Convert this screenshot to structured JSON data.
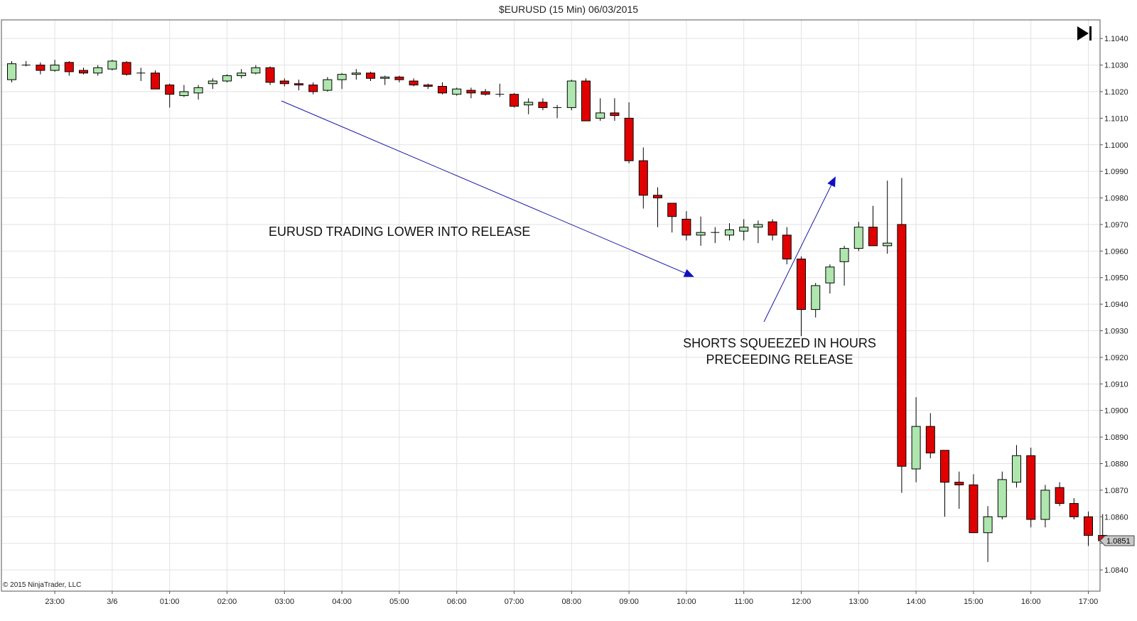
{
  "chart_data": {
    "type": "candlestick",
    "title": "$EURUSD (15 Min)  06/03/2015",
    "copyright": "© 2015 NinjaTrader, LLC",
    "ylim": [
      1.0832,
      1.1047
    ],
    "yticks": [
      "1.1040",
      "1.1030",
      "1.1020",
      "1.1010",
      "1.1000",
      "1.0990",
      "1.0980",
      "1.0970",
      "1.0960",
      "1.0950",
      "1.0940",
      "1.0930",
      "1.0920",
      "1.0910",
      "1.0900",
      "1.0890",
      "1.0880",
      "1.0870",
      "1.0860",
      "1.0850",
      "1.0840"
    ],
    "xticks": [
      {
        "label": "23:00",
        "idx": 3
      },
      {
        "label": "3/6",
        "idx": 7
      },
      {
        "label": "01:00",
        "idx": 11
      },
      {
        "label": "02:00",
        "idx": 15
      },
      {
        "label": "03:00",
        "idx": 19
      },
      {
        "label": "04:00",
        "idx": 23
      },
      {
        "label": "05:00",
        "idx": 27
      },
      {
        "label": "06:00",
        "idx": 31
      },
      {
        "label": "07:00",
        "idx": 35
      },
      {
        "label": "08:00",
        "idx": 39
      },
      {
        "label": "09:00",
        "idx": 43
      },
      {
        "label": "10:00",
        "idx": 47
      },
      {
        "label": "11:00",
        "idx": 51
      },
      {
        "label": "12:00",
        "idx": 55
      },
      {
        "label": "13:00",
        "idx": 59
      },
      {
        "label": "14:00",
        "idx": 63
      },
      {
        "label": "15:00",
        "idx": 67
      },
      {
        "label": "16:00",
        "idx": 71
      },
      {
        "label": "17:00",
        "idx": 75
      }
    ],
    "candles": [
      {
        "o": 1.10245,
        "h": 1.10315,
        "l": 1.10235,
        "c": 1.10305
      },
      {
        "o": 1.103,
        "h": 1.10315,
        "l": 1.10295,
        "c": 1.103
      },
      {
        "o": 1.103,
        "h": 1.1031,
        "l": 1.10265,
        "c": 1.1028
      },
      {
        "o": 1.1028,
        "h": 1.1032,
        "l": 1.10275,
        "c": 1.103
      },
      {
        "o": 1.1031,
        "h": 1.10315,
        "l": 1.1026,
        "c": 1.10275
      },
      {
        "o": 1.1028,
        "h": 1.1029,
        "l": 1.10265,
        "c": 1.1027
      },
      {
        "o": 1.1027,
        "h": 1.103,
        "l": 1.1026,
        "c": 1.1029
      },
      {
        "o": 1.10285,
        "h": 1.1032,
        "l": 1.1028,
        "c": 1.10315
      },
      {
        "o": 1.1031,
        "h": 1.10315,
        "l": 1.1026,
        "c": 1.10265
      },
      {
        "o": 1.1027,
        "h": 1.1029,
        "l": 1.1024,
        "c": 1.1027
      },
      {
        "o": 1.1027,
        "h": 1.1028,
        "l": 1.1021,
        "c": 1.1021
      },
      {
        "o": 1.10225,
        "h": 1.1023,
        "l": 1.1014,
        "c": 1.1019
      },
      {
        "o": 1.10185,
        "h": 1.10225,
        "l": 1.1018,
        "c": 1.102
      },
      {
        "o": 1.10195,
        "h": 1.10225,
        "l": 1.1017,
        "c": 1.10215
      },
      {
        "o": 1.1023,
        "h": 1.1025,
        "l": 1.1021,
        "c": 1.1024
      },
      {
        "o": 1.1024,
        "h": 1.10265,
        "l": 1.10235,
        "c": 1.1026
      },
      {
        "o": 1.1026,
        "h": 1.10285,
        "l": 1.1025,
        "c": 1.1027
      },
      {
        "o": 1.1027,
        "h": 1.103,
        "l": 1.10265,
        "c": 1.1029
      },
      {
        "o": 1.1029,
        "h": 1.10295,
        "l": 1.10225,
        "c": 1.10235
      },
      {
        "o": 1.1024,
        "h": 1.1025,
        "l": 1.1022,
        "c": 1.1023
      },
      {
        "o": 1.1023,
        "h": 1.10245,
        "l": 1.10205,
        "c": 1.10225
      },
      {
        "o": 1.10225,
        "h": 1.10235,
        "l": 1.1019,
        "c": 1.102
      },
      {
        "o": 1.10205,
        "h": 1.10255,
        "l": 1.102,
        "c": 1.10245
      },
      {
        "o": 1.10245,
        "h": 1.1027,
        "l": 1.1021,
        "c": 1.10265
      },
      {
        "o": 1.10265,
        "h": 1.10285,
        "l": 1.10245,
        "c": 1.1027
      },
      {
        "o": 1.1027,
        "h": 1.10275,
        "l": 1.1024,
        "c": 1.1025
      },
      {
        "o": 1.1025,
        "h": 1.1026,
        "l": 1.10225,
        "c": 1.10255
      },
      {
        "o": 1.10255,
        "h": 1.1026,
        "l": 1.10235,
        "c": 1.10245
      },
      {
        "o": 1.1024,
        "h": 1.1025,
        "l": 1.1022,
        "c": 1.10225
      },
      {
        "o": 1.10225,
        "h": 1.1023,
        "l": 1.1021,
        "c": 1.1022
      },
      {
        "o": 1.1022,
        "h": 1.10235,
        "l": 1.1019,
        "c": 1.10195
      },
      {
        "o": 1.1019,
        "h": 1.10215,
        "l": 1.10185,
        "c": 1.1021
      },
      {
        "o": 1.10205,
        "h": 1.10215,
        "l": 1.10175,
        "c": 1.10195
      },
      {
        "o": 1.102,
        "h": 1.1021,
        "l": 1.10185,
        "c": 1.1019
      },
      {
        "o": 1.1019,
        "h": 1.1023,
        "l": 1.1018,
        "c": 1.1019
      },
      {
        "o": 1.1019,
        "h": 1.10195,
        "l": 1.1014,
        "c": 1.10145
      },
      {
        "o": 1.1015,
        "h": 1.10175,
        "l": 1.10115,
        "c": 1.1016
      },
      {
        "o": 1.1016,
        "h": 1.10175,
        "l": 1.1013,
        "c": 1.1014
      },
      {
        "o": 1.1014,
        "h": 1.1015,
        "l": 1.101,
        "c": 1.1014
      },
      {
        "o": 1.1014,
        "h": 1.10245,
        "l": 1.1013,
        "c": 1.1024
      },
      {
        "o": 1.1024,
        "h": 1.1025,
        "l": 1.1009,
        "c": 1.1009
      },
      {
        "o": 1.101,
        "h": 1.10175,
        "l": 1.1009,
        "c": 1.1012
      },
      {
        "o": 1.1012,
        "h": 1.10175,
        "l": 1.1009,
        "c": 1.1011
      },
      {
        "o": 1.101,
        "h": 1.1016,
        "l": 1.0993,
        "c": 1.0994
      },
      {
        "o": 1.0994,
        "h": 1.0999,
        "l": 1.0976,
        "c": 1.0981
      },
      {
        "o": 1.0981,
        "h": 1.0984,
        "l": 1.0969,
        "c": 1.098
      },
      {
        "o": 1.0978,
        "h": 1.0978,
        "l": 1.0967,
        "c": 1.0973
      },
      {
        "o": 1.0972,
        "h": 1.0975,
        "l": 1.0964,
        "c": 1.0966
      },
      {
        "o": 1.0966,
        "h": 1.0973,
        "l": 1.0962,
        "c": 1.0967
      },
      {
        "o": 1.0967,
        "h": 1.0969,
        "l": 1.0963,
        "c": 1.0967
      },
      {
        "o": 1.0966,
        "h": 1.09705,
        "l": 1.0964,
        "c": 1.0968
      },
      {
        "o": 1.09675,
        "h": 1.0972,
        "l": 1.0964,
        "c": 1.0969
      },
      {
        "o": 1.0969,
        "h": 1.09715,
        "l": 1.0963,
        "c": 1.097
      },
      {
        "o": 1.0971,
        "h": 1.0972,
        "l": 1.0964,
        "c": 1.0966
      },
      {
        "o": 1.0966,
        "h": 1.0969,
        "l": 1.0955,
        "c": 1.0957
      },
      {
        "o": 1.0957,
        "h": 1.0958,
        "l": 1.0928,
        "c": 1.0938
      },
      {
        "o": 1.0938,
        "h": 1.0948,
        "l": 1.0935,
        "c": 1.0947
      },
      {
        "o": 1.0948,
        "h": 1.0955,
        "l": 1.0944,
        "c": 1.0954
      },
      {
        "o": 1.0956,
        "h": 1.0962,
        "l": 1.0947,
        "c": 1.0961
      },
      {
        "o": 1.0961,
        "h": 1.0971,
        "l": 1.096,
        "c": 1.0969
      },
      {
        "o": 1.0969,
        "h": 1.0977,
        "l": 1.0962,
        "c": 1.0962
      },
      {
        "o": 1.0962,
        "h": 1.09865,
        "l": 1.0959,
        "c": 1.0963
      },
      {
        "o": 1.097,
        "h": 1.09875,
        "l": 1.0869,
        "c": 1.0879
      },
      {
        "o": 1.0878,
        "h": 1.0905,
        "l": 1.0873,
        "c": 1.0894
      },
      {
        "o": 1.0894,
        "h": 1.0899,
        "l": 1.0882,
        "c": 1.0884
      },
      {
        "o": 1.0885,
        "h": 1.0885,
        "l": 1.086,
        "c": 1.0873
      },
      {
        "o": 1.0873,
        "h": 1.0877,
        "l": 1.0863,
        "c": 1.0872
      },
      {
        "o": 1.0872,
        "h": 1.0876,
        "l": 1.0854,
        "c": 1.0854
      },
      {
        "o": 1.0854,
        "h": 1.0864,
        "l": 1.0843,
        "c": 1.086
      },
      {
        "o": 1.086,
        "h": 1.0877,
        "l": 1.0859,
        "c": 1.0874
      },
      {
        "o": 1.0873,
        "h": 1.0887,
        "l": 1.0871,
        "c": 1.0883
      },
      {
        "o": 1.0883,
        "h": 1.0886,
        "l": 1.0856,
        "c": 1.0859
      },
      {
        "o": 1.0859,
        "h": 1.0872,
        "l": 1.0856,
        "c": 1.087
      },
      {
        "o": 1.0871,
        "h": 1.0873,
        "l": 1.0864,
        "c": 1.0865
      },
      {
        "o": 1.0865,
        "h": 1.0867,
        "l": 1.0859,
        "c": 1.086
      },
      {
        "o": 1.086,
        "h": 1.0862,
        "l": 1.0849,
        "c": 1.0853
      },
      {
        "o": 1.0853,
        "h": 1.0861,
        "l": 1.0851,
        "c": 1.0851
      }
    ],
    "last_price": "1.0851",
    "annotations": [
      {
        "text": "EURUSD TRADING LOWER INTO RELEASE"
      },
      {
        "text": "SHORTS SQUEEZED IN HOURS"
      },
      {
        "text": "PRECEEDING RELEASE"
      }
    ],
    "colors": {
      "up": "#aee6ae",
      "down": "#e00000",
      "outline": "#000000",
      "grid": "#e2e2e2",
      "arrow": "#1818a8"
    }
  }
}
